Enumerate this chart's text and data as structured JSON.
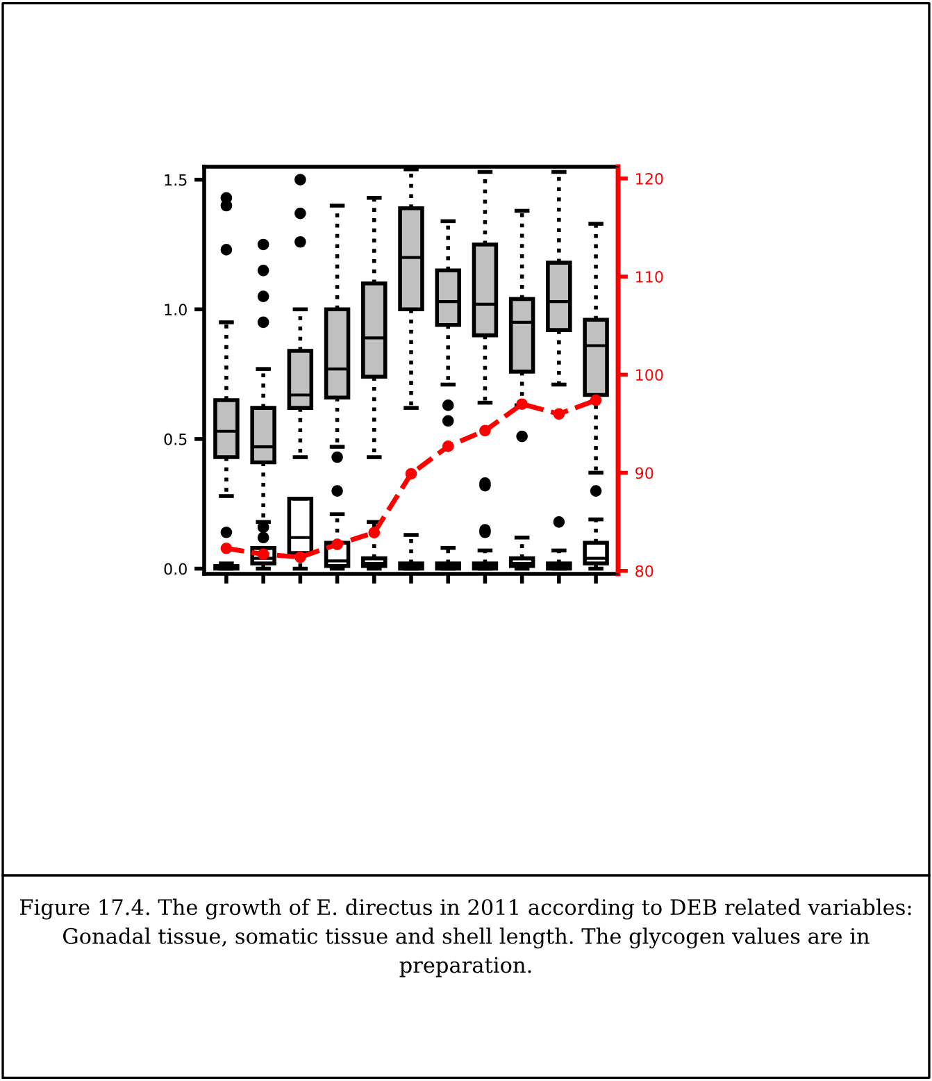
{
  "chart_data": {
    "type": "box",
    "categories": [
      null,
      null,
      null,
      null,
      null,
      null,
      null,
      null,
      null,
      null,
      null
    ],
    "ylim": [
      -0.02,
      1.55
    ],
    "yticks": [
      {
        "value": 0,
        "label": "0.0"
      },
      0.5,
      {
        "value": 1,
        "label": "1.0"
      },
      1.5
    ],
    "y2lim": [
      79.7,
      121.2
    ],
    "y2ticks": [
      80,
      90,
      100,
      110,
      120
    ],
    "grid": false,
    "series": [
      {
        "color": "#c0c0c0",
        "boxes": [
          {
            "low": 0.28,
            "q1": 0.43,
            "median": 0.53,
            "q3": 0.65,
            "high": 0.95,
            "outliers": [
              1.23,
              1.4,
              1.43
            ]
          },
          {
            "low": 0.18,
            "q1": 0.41,
            "median": 0.47,
            "q3": 0.62,
            "high": 0.77,
            "outliers": [
              0.95,
              1.05,
              1.15,
              1.25
            ]
          },
          {
            "low": 0.43,
            "q1": 0.62,
            "median": 0.67,
            "q3": 0.84,
            "high": 1.0,
            "outliers": [
              1.26,
              1.37,
              1.5
            ]
          },
          {
            "low": 0.47,
            "q1": 0.66,
            "median": 0.77,
            "q3": 1.0,
            "high": 1.4,
            "outliers": [
              0.43
            ]
          },
          {
            "low": 0.43,
            "q1": 0.74,
            "median": 0.89,
            "q3": 1.1,
            "high": 1.43
          },
          {
            "low": 0.62,
            "q1": 1.0,
            "median": 1.2,
            "q3": 1.39,
            "high": 1.54
          },
          {
            "low": 0.71,
            "q1": 0.94,
            "median": 1.03,
            "q3": 1.15,
            "high": 1.34,
            "outliers": [
              0.57,
              0.63
            ]
          },
          {
            "low": 0.64,
            "q1": 0.9,
            "median": 1.02,
            "q3": 1.25,
            "high": 1.53,
            "outliers": [
              0.14,
              0.32
            ]
          },
          {
            "low": 0.63,
            "q1": 0.76,
            "median": 0.95,
            "q3": 1.04,
            "high": 1.38,
            "outliers": [
              0.51
            ]
          },
          {
            "low": 0.71,
            "q1": 0.92,
            "median": 1.03,
            "q3": 1.18,
            "high": 1.53,
            "outliers": [
              0.18
            ]
          },
          {
            "low": 0.37,
            "q1": 0.67,
            "median": 0.86,
            "q3": 0.96,
            "high": 1.33,
            "outliers": [
              0.3
            ]
          }
        ]
      },
      {
        "color": "#ffffff",
        "boxes": [
          {
            "low": 0,
            "q1": 0,
            "median": 0,
            "q3": 0.01,
            "high": 0.02,
            "outliers": [
              0.14
            ]
          },
          {
            "low": 0,
            "q1": 0.02,
            "median": 0.04,
            "q3": 0.08,
            "high": 0.08,
            "outliers": [
              0.12,
              0.16
            ]
          },
          {
            "low": 0,
            "q1": 0.06,
            "median": 0.12,
            "q3": 0.27,
            "high": 0.27
          },
          {
            "low": 0,
            "q1": 0.01,
            "median": 0.03,
            "q3": 0.1,
            "high": 0.21,
            "outliers": [
              0.3
            ]
          },
          {
            "low": 0,
            "q1": 0.01,
            "median": 0.02,
            "q3": 0.04,
            "high": 0.18
          },
          {
            "low": 0,
            "q1": 0,
            "median": 0.01,
            "q3": 0.02,
            "high": 0.13
          },
          {
            "low": 0,
            "q1": 0,
            "median": 0.01,
            "q3": 0.02,
            "high": 0.08
          },
          {
            "low": 0,
            "q1": 0,
            "median": 0.01,
            "q3": 0.02,
            "high": 0.07,
            "outliers": [
              0.15,
              0.33
            ]
          },
          {
            "low": 0,
            "q1": 0.01,
            "median": 0.02,
            "q3": 0.04,
            "high": 0.12
          },
          {
            "low": 0,
            "q1": 0,
            "median": 0.01,
            "q3": 0.02,
            "high": 0.07
          },
          {
            "low": 0,
            "q1": 0.02,
            "median": 0.04,
            "q3": 0.1,
            "high": 0.19
          }
        ]
      },
      {
        "type": "line",
        "axis": "y2",
        "color": "#ff0000",
        "marker": "circle",
        "line_style": "dashed",
        "values": [
          82.3,
          81.7,
          81.4,
          82.7,
          83.9,
          89.9,
          92.7,
          94.3,
          97,
          96,
          97.4
        ]
      }
    ],
    "annotations": [
      "Figure 17.4. The growth of E. directus in 2011 according to DEB related variables: Gonadal tissue, somatic tissue and shell length. The glycogen values are in preparation."
    ]
  }
}
